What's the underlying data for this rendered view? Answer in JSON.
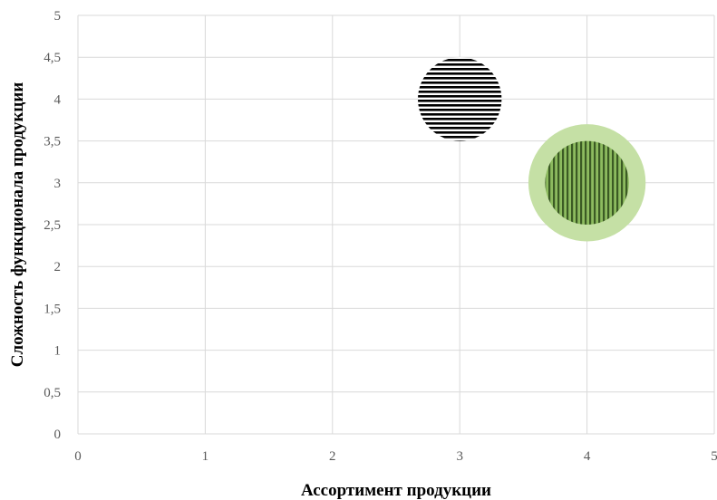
{
  "chart_data": {
    "type": "bubble",
    "title": "",
    "xlabel": "Ассортимент продукции",
    "ylabel": "Сложность функционала продукции",
    "xlim": [
      0,
      5
    ],
    "ylim": [
      0,
      5
    ],
    "x_ticks": [
      "0",
      "1",
      "2",
      "3",
      "4",
      "5"
    ],
    "y_ticks": [
      "0",
      "0,5",
      "1",
      "1,5",
      "2",
      "2,5",
      "3",
      "3,5",
      "4",
      "4,5",
      "5"
    ],
    "grid": true,
    "legend": "none",
    "series": [
      {
        "x": 3,
        "y": 4,
        "radius_y": 0.5,
        "fill": "horizontal-stripes",
        "stripe_color": "#000000"
      },
      {
        "x": 4,
        "y": 3,
        "radius_y": 0.7,
        "fill": "solid",
        "color": "#c5e0a5"
      },
      {
        "x": 4,
        "y": 3,
        "radius_y": 0.5,
        "fill": "vertical-stripes",
        "stripe_color": "#3b5a24"
      }
    ]
  }
}
